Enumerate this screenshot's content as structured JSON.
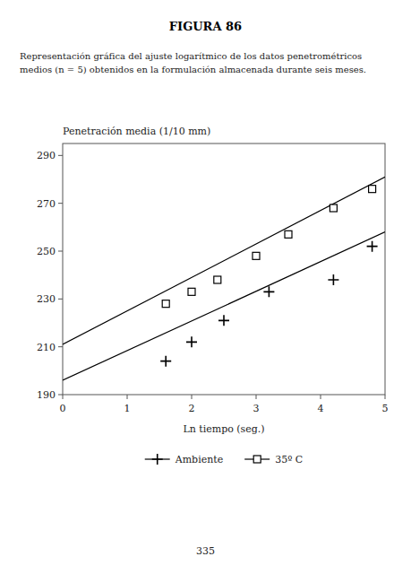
{
  "chart_data": {
    "type": "scatter",
    "title": "FIGURA 86",
    "subtitle": [
      "Representación gráfica del ajuste logarítmico de los datos penetrométricos",
      "medios (n = 5) obtenidos en la formulación almacenada durante seis meses."
    ],
    "y_label": "Penetración media (1/10 mm)",
    "x_label": "Ln tiempo (seg.)",
    "page_number": "335",
    "xlim": [
      0,
      5
    ],
    "ylim": [
      190,
      295
    ],
    "xticks": [
      0,
      1,
      2,
      3,
      4,
      5
    ],
    "yticks": [
      190,
      210,
      230,
      250,
      270,
      290
    ],
    "grid": false,
    "legend": "bottom",
    "series": [
      {
        "name": "Ambiente",
        "color": "#000000",
        "marker": "plus",
        "x": [
          1.6,
          2.0,
          2.5,
          3.2,
          4.2,
          4.8
        ],
        "values": [
          204,
          212,
          221,
          233,
          238,
          252
        ],
        "fit": {
          "x": [
            0,
            5
          ],
          "values": [
            196.0,
            258.0
          ]
        }
      },
      {
        "name": "35º C",
        "color": "#000000",
        "marker": "square",
        "x": [
          1.6,
          2.0,
          2.4,
          3.0,
          3.5,
          4.2,
          4.8
        ],
        "values": [
          228,
          233,
          238,
          248,
          257,
          268,
          276
        ],
        "fit": {
          "x": [
            0,
            5
          ],
          "values": [
            211.0,
            281.0
          ]
        }
      }
    ]
  }
}
